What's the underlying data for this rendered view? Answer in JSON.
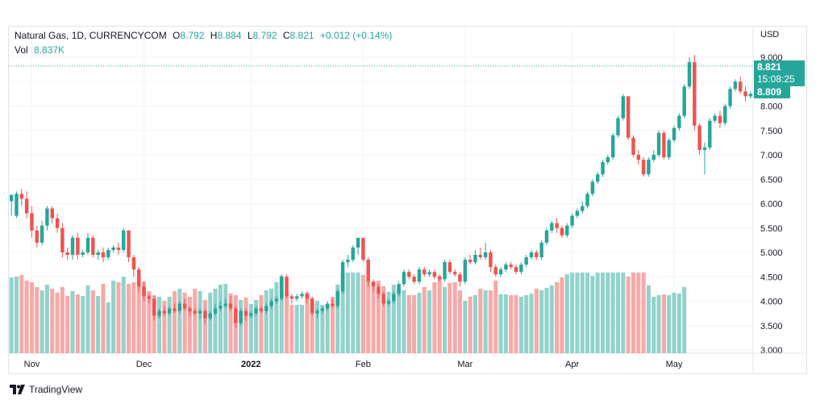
{
  "legend": {
    "symbol": "Natural Gas, 1D, CURRENCYCOM",
    "open_label": "O",
    "open": "8.792",
    "high_label": "H",
    "high": "8.884",
    "low_label": "L",
    "low": "8.792",
    "close_label": "C",
    "close": "8.821",
    "change": "+0.012 (+0.14%)",
    "vol_label": "Vol",
    "vol": "8.837K"
  },
  "price_axis": {
    "currency": "USD"
  },
  "price_tags": {
    "last": "8.821",
    "countdown": "15:08:25",
    "second": "8.809"
  },
  "brand": {
    "name": "TradingView",
    "logo": "tradingview-logo-icon"
  },
  "colors": {
    "up": "#26a69a",
    "down": "#ef5350",
    "up_vol": "#92d2cc",
    "down_vol": "#f7a9a7",
    "grid": "#f0f3fa"
  },
  "chart_data": {
    "type": "candlestick",
    "yaxis": {
      "ticks": [
        "3.000",
        "3.500",
        "4.000",
        "4.500",
        "5.000",
        "5.500",
        "6.000",
        "6.500",
        "7.000",
        "7.500",
        "8.000",
        "8.500",
        "9.000"
      ],
      "ylim": [
        3.0,
        9.0
      ]
    },
    "xaxis": {
      "ticks": [
        {
          "label": "Nov",
          "index": 4
        },
        {
          "label": "Dec",
          "index": 26
        },
        {
          "label": "2022",
          "index": 47
        },
        {
          "label": "Feb",
          "index": 69
        },
        {
          "label": "Mar",
          "index": 89
        },
        {
          "label": "Apr",
          "index": 110
        },
        {
          "label": "May",
          "index": 130
        }
      ]
    },
    "candles": [
      [
        6.05,
        6.18,
        5.85,
        5.75
      ],
      [
        5.75,
        6.2,
        6.25,
        5.7
      ],
      [
        6.2,
        6.1,
        6.3,
        5.95
      ],
      [
        6.1,
        5.8,
        6.25,
        5.7
      ],
      [
        5.8,
        5.45,
        5.95,
        5.3
      ],
      [
        5.45,
        5.2,
        5.55,
        5.1
      ],
      [
        5.2,
        5.55,
        5.65,
        5.15
      ],
      [
        5.55,
        5.9,
        5.95,
        5.45
      ],
      [
        5.9,
        5.7,
        5.95,
        5.6
      ],
      [
        5.7,
        5.5,
        5.8,
        5.4
      ],
      [
        5.5,
        5.0,
        5.6,
        4.9
      ],
      [
        5.0,
        4.95,
        5.1,
        4.85
      ],
      [
        4.95,
        5.3,
        5.35,
        4.85
      ],
      [
        5.3,
        4.95,
        5.4,
        4.85
      ],
      [
        4.95,
        5.0,
        5.05,
        4.9
      ],
      [
        5.0,
        5.3,
        5.4,
        4.95
      ],
      [
        5.3,
        4.95,
        5.35,
        4.9
      ],
      [
        4.95,
        5.0,
        5.05,
        4.85
      ],
      [
        5.0,
        4.9,
        5.1,
        4.8
      ],
      [
        4.9,
        5.05,
        5.1,
        4.85
      ],
      [
        5.05,
        5.1,
        5.15,
        5.0
      ],
      [
        5.1,
        5.05,
        5.2,
        4.95
      ],
      [
        5.05,
        5.45,
        5.5,
        5.0
      ],
      [
        5.45,
        4.9,
        5.45,
        4.8
      ],
      [
        4.9,
        4.65,
        4.95,
        4.5
      ],
      [
        4.65,
        4.3,
        4.7,
        4.2
      ],
      [
        4.3,
        4.1,
        4.4,
        4.0
      ],
      [
        4.1,
        4.05,
        4.15,
        3.95
      ],
      [
        4.05,
        3.7,
        4.1,
        3.6
      ],
      [
        3.7,
        3.8,
        3.85,
        3.65
      ],
      [
        3.8,
        3.75,
        3.9,
        3.7
      ],
      [
        3.75,
        3.85,
        3.9,
        3.7
      ],
      [
        3.85,
        3.8,
        3.95,
        3.75
      ],
      [
        3.8,
        3.95,
        4.0,
        3.75
      ],
      [
        3.95,
        3.85,
        4.05,
        3.8
      ],
      [
        3.85,
        3.8,
        3.9,
        3.7
      ],
      [
        3.8,
        3.75,
        3.85,
        3.7
      ],
      [
        3.75,
        3.8,
        3.85,
        3.65
      ],
      [
        3.8,
        3.65,
        3.85,
        3.55
      ],
      [
        3.65,
        3.75,
        3.8,
        3.6
      ],
      [
        3.75,
        3.85,
        3.95,
        3.7
      ],
      [
        3.85,
        3.9,
        4.0,
        3.8
      ],
      [
        3.9,
        3.95,
        4.05,
        3.85
      ],
      [
        3.95,
        3.85,
        4.1,
        3.8
      ],
      [
        3.85,
        3.55,
        3.9,
        3.45
      ],
      [
        3.55,
        3.8,
        3.85,
        3.5
      ],
      [
        3.8,
        3.7,
        3.85,
        3.6
      ],
      [
        3.7,
        3.75,
        3.8,
        3.65
      ],
      [
        3.75,
        3.85,
        3.9,
        3.7
      ],
      [
        3.85,
        3.8,
        3.9,
        3.75
      ],
      [
        3.8,
        3.9,
        3.95,
        3.75
      ],
      [
        3.9,
        4.0,
        4.05,
        3.85
      ],
      [
        4.0,
        4.05,
        4.1,
        3.95
      ],
      [
        4.05,
        4.5,
        4.55,
        4.0
      ],
      [
        4.5,
        4.1,
        4.55,
        4.05
      ],
      [
        4.1,
        4.05,
        4.15,
        3.95
      ],
      [
        4.05,
        4.1,
        4.15,
        4.0
      ],
      [
        4.1,
        4.15,
        4.2,
        4.05
      ],
      [
        4.15,
        4.05,
        4.2,
        3.95
      ],
      [
        4.05,
        3.75,
        4.1,
        3.7
      ],
      [
        3.75,
        3.8,
        3.85,
        3.65
      ],
      [
        3.8,
        3.85,
        3.9,
        3.75
      ],
      [
        3.85,
        3.95,
        4.0,
        3.8
      ],
      [
        3.95,
        3.9,
        4.05,
        3.85
      ],
      [
        3.9,
        4.2,
        4.25,
        3.85
      ],
      [
        4.2,
        4.8,
        4.85,
        4.15
      ],
      [
        4.8,
        4.85,
        4.95,
        4.7
      ],
      [
        4.85,
        5.1,
        5.15,
        4.8
      ],
      [
        5.1,
        5.3,
        5.3,
        4.95
      ],
      [
        5.3,
        4.85,
        5.25,
        4.8
      ],
      [
        4.85,
        4.4,
        4.9,
        4.3
      ],
      [
        4.4,
        4.3,
        4.45,
        4.2
      ],
      [
        4.3,
        4.15,
        4.35,
        4.05
      ],
      [
        4.15,
        3.95,
        4.2,
        3.9
      ],
      [
        3.95,
        4.0,
        4.05,
        3.9
      ],
      [
        4.0,
        4.15,
        4.2,
        3.95
      ],
      [
        4.15,
        4.35,
        4.4,
        4.1
      ],
      [
        4.35,
        4.6,
        4.65,
        4.3
      ],
      [
        4.6,
        4.5,
        4.65,
        4.45
      ],
      [
        4.5,
        4.4,
        4.55,
        4.35
      ],
      [
        4.4,
        4.65,
        4.7,
        4.35
      ],
      [
        4.65,
        4.55,
        4.7,
        4.5
      ],
      [
        4.55,
        4.6,
        4.65,
        4.5
      ],
      [
        4.6,
        4.5,
        4.65,
        4.45
      ],
      [
        4.5,
        4.45,
        4.55,
        4.4
      ],
      [
        4.45,
        4.8,
        4.85,
        4.4
      ],
      [
        4.8,
        4.6,
        4.85,
        4.55
      ],
      [
        4.6,
        4.55,
        4.65,
        4.5
      ],
      [
        4.55,
        4.4,
        4.6,
        4.3
      ],
      [
        4.4,
        4.85,
        4.9,
        4.35
      ],
      [
        4.85,
        4.8,
        4.95,
        4.75
      ],
      [
        4.8,
        4.95,
        5.05,
        4.75
      ],
      [
        4.95,
        4.9,
        5.1,
        4.85
      ],
      [
        4.9,
        5.0,
        5.2,
        4.85
      ],
      [
        5.0,
        4.7,
        5.05,
        4.6
      ],
      [
        4.7,
        4.55,
        4.75,
        4.5
      ],
      [
        4.55,
        4.65,
        4.7,
        4.5
      ],
      [
        4.65,
        4.75,
        4.8,
        4.6
      ],
      [
        4.75,
        4.7,
        4.8,
        4.65
      ],
      [
        4.7,
        4.6,
        4.75,
        4.55
      ],
      [
        4.6,
        4.75,
        4.8,
        4.55
      ],
      [
        4.75,
        4.9,
        4.95,
        4.7
      ],
      [
        4.9,
        5.0,
        5.05,
        4.85
      ],
      [
        5.0,
        4.9,
        5.05,
        4.85
      ],
      [
        4.9,
        5.2,
        5.25,
        4.85
      ],
      [
        5.2,
        5.45,
        5.5,
        5.15
      ],
      [
        5.45,
        5.6,
        5.65,
        5.4
      ],
      [
        5.6,
        5.5,
        5.7,
        5.4
      ],
      [
        5.5,
        5.35,
        5.55,
        5.3
      ],
      [
        5.35,
        5.55,
        5.6,
        5.3
      ],
      [
        5.55,
        5.75,
        5.8,
        5.5
      ],
      [
        5.75,
        5.85,
        5.9,
        5.7
      ],
      [
        5.85,
        5.95,
        6.05,
        5.8
      ],
      [
        5.95,
        6.2,
        6.25,
        5.9
      ],
      [
        6.2,
        6.45,
        6.5,
        6.15
      ],
      [
        6.45,
        6.6,
        6.65,
        6.4
      ],
      [
        6.6,
        6.85,
        6.9,
        6.55
      ],
      [
        6.85,
        6.95,
        7.0,
        6.8
      ],
      [
        6.95,
        7.4,
        7.45,
        6.9
      ],
      [
        7.4,
        7.75,
        7.8,
        7.35
      ],
      [
        7.75,
        8.2,
        8.25,
        7.7
      ],
      [
        8.2,
        7.35,
        8.15,
        7.3
      ],
      [
        7.35,
        7.0,
        7.4,
        6.95
      ],
      [
        7.0,
        6.9,
        7.1,
        6.8
      ],
      [
        6.9,
        6.6,
        6.95,
        6.55
      ],
      [
        6.6,
        6.9,
        6.95,
        6.55
      ],
      [
        6.9,
        7.0,
        7.1,
        6.85
      ],
      [
        7.0,
        7.45,
        7.5,
        6.95
      ],
      [
        7.45,
        6.95,
        7.5,
        6.9
      ],
      [
        6.95,
        7.3,
        7.35,
        6.9
      ],
      [
        7.3,
        7.55,
        7.6,
        7.25
      ],
      [
        7.55,
        7.8,
        7.85,
        7.5
      ],
      [
        7.8,
        8.4,
        8.45,
        7.75
      ],
      [
        8.4,
        8.9,
        9.0,
        8.35
      ],
      [
        8.9,
        7.6,
        9.05,
        7.5
      ],
      [
        7.6,
        7.1,
        7.65,
        7.0
      ],
      [
        7.1,
        7.15,
        7.25,
        6.6
      ],
      [
        7.15,
        7.7,
        7.75,
        7.1
      ],
      [
        7.7,
        7.8,
        7.85,
        7.65
      ],
      [
        7.8,
        7.65,
        7.9,
        7.55
      ],
      [
        7.65,
        8.0,
        8.05,
        7.6
      ],
      [
        8.0,
        8.35,
        8.4,
        7.95
      ],
      [
        8.35,
        8.5,
        8.55,
        8.3
      ],
      [
        8.5,
        8.3,
        8.6,
        8.25
      ],
      [
        8.3,
        8.2,
        8.4,
        8.1
      ],
      [
        8.2,
        8.25,
        8.3,
        8.15
      ]
    ],
    "volume": [
      0.94,
      0.95,
      0.97,
      0.9,
      0.88,
      0.82,
      0.78,
      0.85,
      0.8,
      0.75,
      0.82,
      0.71,
      0.77,
      0.73,
      0.71,
      0.84,
      0.78,
      0.71,
      0.86,
      0.63,
      0.9,
      0.88,
      0.95,
      0.86,
      0.88,
      0.93,
      0.89,
      0.77,
      0.72,
      0.7,
      0.65,
      0.7,
      0.77,
      0.8,
      0.75,
      0.7,
      0.8,
      0.77,
      0.66,
      0.75,
      0.8,
      0.85,
      0.86,
      0.74,
      0.72,
      0.66,
      0.69,
      0.61,
      0.66,
      0.72,
      0.78,
      0.8,
      0.88,
      0.96,
      0.74,
      0.6,
      0.6,
      0.6,
      0.75,
      0.68,
      0.65,
      0.6,
      0.61,
      0.7,
      0.85,
      1.0,
      1.0,
      1.0,
      1.0,
      0.97,
      0.89,
      0.89,
      0.9,
      0.83,
      0.76,
      0.85,
      0.8,
      0.78,
      0.72,
      0.72,
      0.75,
      0.82,
      0.78,
      0.88,
      0.96,
      0.82,
      0.87,
      0.88,
      0.78,
      0.65,
      0.7,
      0.72,
      0.8,
      0.78,
      0.78,
      0.9,
      0.73,
      0.73,
      0.72,
      0.72,
      0.7,
      0.72,
      0.74,
      0.8,
      0.78,
      0.81,
      0.84,
      0.88,
      0.94,
      0.98,
      1.0,
      1.0,
      1.0,
      1.0,
      0.96,
      1.0,
      1.0,
      1.0,
      1.0,
      1.0,
      1.0,
      0.95,
      1.0,
      1.0,
      1.0,
      0.84,
      0.7,
      0.72,
      0.73,
      0.72,
      0.75,
      0.74,
      0.82
    ]
  }
}
